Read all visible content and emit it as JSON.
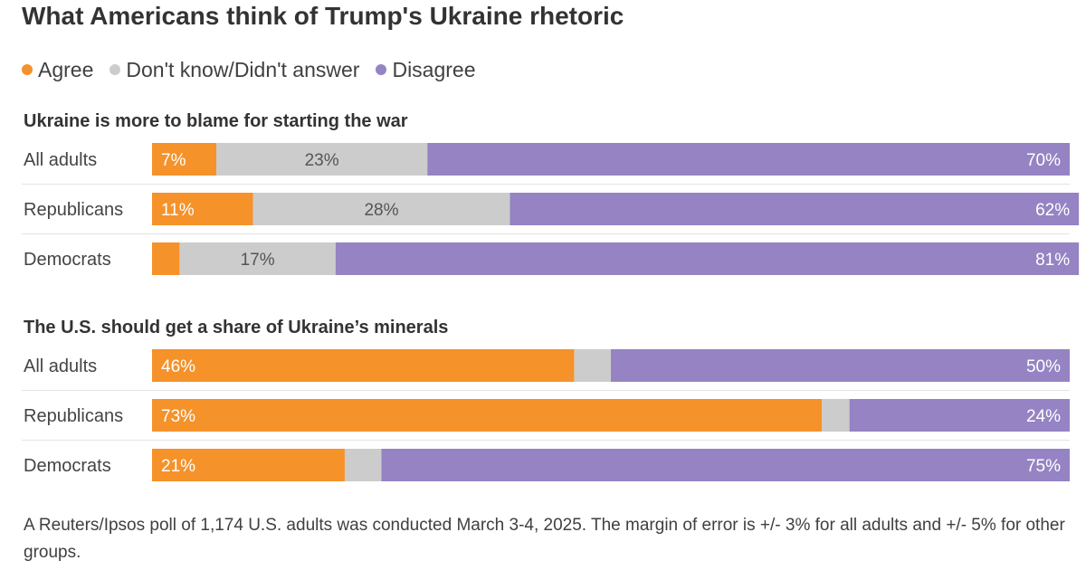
{
  "chart_data": {
    "type": "bar",
    "stacked": true,
    "orientation": "horizontal",
    "percent_scale": [
      0,
      100
    ],
    "title": "What Americans think of Trump's Ukraine rhetoric",
    "legend": {
      "placement": "top-left",
      "items": [
        {
          "label": "Agree",
          "color": "#f5922a"
        },
        {
          "label": "Don't know/Didn't answer",
          "color": "#cccccc"
        },
        {
          "label": "Disagree",
          "color": "#9583c3"
        }
      ]
    },
    "panels": [
      {
        "title": "Ukraine is more to blame for starting the war",
        "categories": [
          "All adults",
          "Republicans",
          "Democrats"
        ],
        "series": [
          {
            "name": "Agree",
            "values": [
              7,
              11,
              3
            ],
            "labels": [
              "7%",
              "11%",
              ""
            ]
          },
          {
            "name": "Don't know/Didn't answer",
            "values": [
              23,
              28,
              17
            ],
            "labels": [
              "23%",
              "28%",
              "17%"
            ]
          },
          {
            "name": "Disagree",
            "values": [
              70,
              62,
              81
            ],
            "labels": [
              "70%",
              "62%",
              "81%"
            ]
          }
        ]
      },
      {
        "title": "The U.S. should get a share of Ukraine’s minerals",
        "categories": [
          "All adults",
          "Republicans",
          "Democrats"
        ],
        "series": [
          {
            "name": "Agree",
            "values": [
              46,
              73,
              21
            ],
            "labels": [
              "46%",
              "73%",
              "21%"
            ]
          },
          {
            "name": "Don't know/Didn't answer",
            "values": [
              4,
              3,
              4
            ],
            "labels": [
              "",
              "",
              ""
            ]
          },
          {
            "name": "Disagree",
            "values": [
              50,
              24,
              75
            ],
            "labels": [
              "50%",
              "24%",
              "75%"
            ]
          }
        ]
      }
    ]
  },
  "footnote": "A Reuters/Ipsos poll of 1,174 U.S. adults was conducted March 3-4, 2025. The margin of error is +/- 3% for all adults and +/- 5% for other groups."
}
